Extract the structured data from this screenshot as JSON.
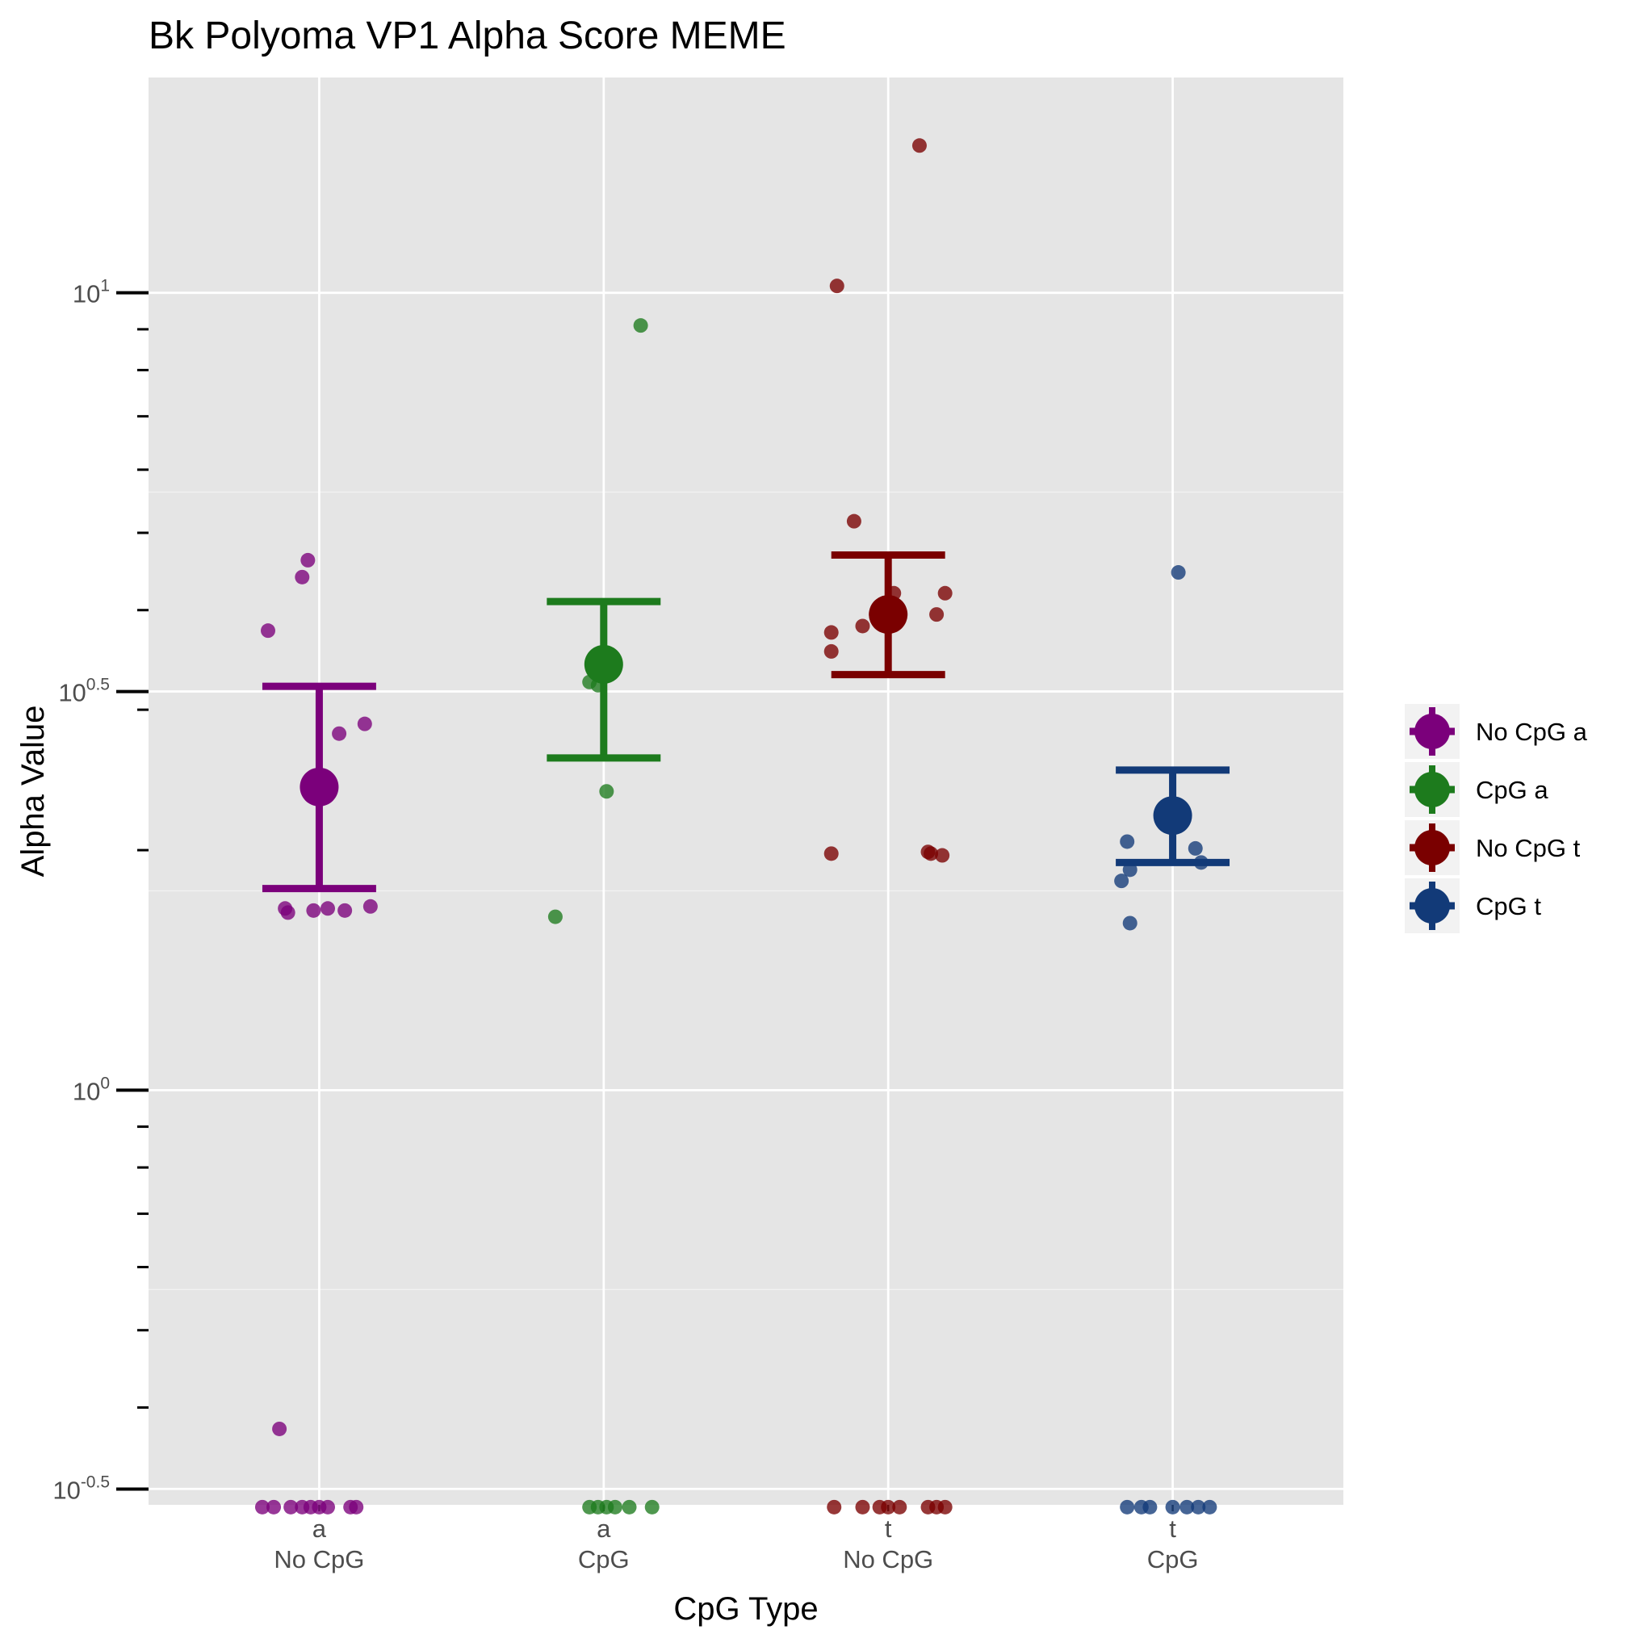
{
  "chart_data": {
    "type": "scatter",
    "title": "Bk Polyoma VP1 Alpha Score MEME",
    "xlabel": "CpG Type",
    "ylabel": "Alpha Value",
    "y_scale": "log10",
    "y_ticks": [
      {
        "value": 0.316,
        "base": "10",
        "exp": "-0.5"
      },
      {
        "value": 1,
        "base": "10",
        "exp": "0"
      },
      {
        "value": 3.162,
        "base": "10",
        "exp": "0.5"
      },
      {
        "value": 10,
        "base": "10",
        "exp": "1"
      }
    ],
    "ylim_log10": [
      -0.52,
      1.27
    ],
    "grid": true,
    "legend_position": "right",
    "categories": [
      {
        "line1": "a",
        "line2": "No CpG"
      },
      {
        "line1": "a",
        "line2": "CpG"
      },
      {
        "line1": "t",
        "line2": "No CpG"
      },
      {
        "line1": "t",
        "line2": "CpG"
      }
    ],
    "series": [
      {
        "name": "No CpG a",
        "color": "#7b007b",
        "category": 0,
        "mean": 2.4,
        "error_low": 1.79,
        "error_high": 3.21,
        "points": [
          {
            "jitter": -0.18,
            "y": 3.77
          },
          {
            "jitter": -0.06,
            "y": 4.4
          },
          {
            "jitter": -0.04,
            "y": 4.62
          },
          {
            "jitter": 0.07,
            "y": 2.8
          },
          {
            "jitter": 0.16,
            "y": 2.88
          },
          {
            "jitter": -0.14,
            "y": 0.376
          },
          {
            "jitter": -0.12,
            "y": 1.69
          },
          {
            "jitter": -0.11,
            "y": 1.67
          },
          {
            "jitter": -0.02,
            "y": 1.68
          },
          {
            "jitter": 0.03,
            "y": 1.69
          },
          {
            "jitter": 0.09,
            "y": 1.68
          },
          {
            "jitter": 0.18,
            "y": 1.7
          },
          {
            "jitter": -0.2,
            "y": 0.3
          },
          {
            "jitter": -0.16,
            "y": 0.3
          },
          {
            "jitter": -0.1,
            "y": 0.3
          },
          {
            "jitter": -0.06,
            "y": 0.3
          },
          {
            "jitter": -0.03,
            "y": 0.3
          },
          {
            "jitter": 0.0,
            "y": 0.3
          },
          {
            "jitter": 0.03,
            "y": 0.3
          },
          {
            "jitter": 0.11,
            "y": 0.3
          },
          {
            "jitter": 0.13,
            "y": 0.3
          }
        ]
      },
      {
        "name": "CpG a",
        "color": "#1d7b1d",
        "category": 1,
        "mean": 3.42,
        "error_low": 2.61,
        "error_high": 4.1,
        "points": [
          {
            "jitter": 0.13,
            "y": 9.1
          },
          {
            "jitter": -0.05,
            "y": 3.25
          },
          {
            "jitter": -0.02,
            "y": 3.22
          },
          {
            "jitter": 0.01,
            "y": 2.37
          },
          {
            "jitter": -0.17,
            "y": 1.65
          },
          {
            "jitter": -0.05,
            "y": 0.3
          },
          {
            "jitter": -0.02,
            "y": 0.3
          },
          {
            "jitter": 0.01,
            "y": 0.3
          },
          {
            "jitter": 0.04,
            "y": 0.3
          },
          {
            "jitter": 0.09,
            "y": 0.3
          },
          {
            "jitter": 0.17,
            "y": 0.3
          }
        ]
      },
      {
        "name": "No CpG t",
        "color": "#7a0000",
        "category": 2,
        "mean": 3.95,
        "error_low": 3.32,
        "error_high": 4.69,
        "points": [
          {
            "jitter": 0.11,
            "y": 15.3
          },
          {
            "jitter": -0.18,
            "y": 10.2
          },
          {
            "jitter": -0.12,
            "y": 5.17
          },
          {
            "jitter": -0.09,
            "y": 3.82
          },
          {
            "jitter": -0.2,
            "y": 3.75
          },
          {
            "jitter": 0.02,
            "y": 4.2
          },
          {
            "jitter": 0.17,
            "y": 3.95
          },
          {
            "jitter": 0.2,
            "y": 4.2
          },
          {
            "jitter": -0.2,
            "y": 3.55
          },
          {
            "jitter": -0.2,
            "y": 1.98
          },
          {
            "jitter": 0.14,
            "y": 1.99
          },
          {
            "jitter": 0.19,
            "y": 1.97
          },
          {
            "jitter": 0.15,
            "y": 1.98
          },
          {
            "jitter": -0.19,
            "y": 0.3
          },
          {
            "jitter": -0.09,
            "y": 0.3
          },
          {
            "jitter": -0.03,
            "y": 0.3
          },
          {
            "jitter": 0.0,
            "y": 0.3
          },
          {
            "jitter": 0.04,
            "y": 0.3
          },
          {
            "jitter": 0.14,
            "y": 0.3
          },
          {
            "jitter": 0.17,
            "y": 0.3
          },
          {
            "jitter": 0.2,
            "y": 0.3
          }
        ]
      },
      {
        "name": "CpG t",
        "color": "#123a78",
        "category": 3,
        "mean": 2.21,
        "error_low": 1.93,
        "error_high": 2.52,
        "points": [
          {
            "jitter": 0.02,
            "y": 4.46
          },
          {
            "jitter": -0.16,
            "y": 2.05
          },
          {
            "jitter": -0.15,
            "y": 1.89
          },
          {
            "jitter": 0.08,
            "y": 2.01
          },
          {
            "jitter": 0.1,
            "y": 1.93
          },
          {
            "jitter": -0.18,
            "y": 1.83
          },
          {
            "jitter": -0.15,
            "y": 1.62
          },
          {
            "jitter": -0.16,
            "y": 0.3
          },
          {
            "jitter": -0.11,
            "y": 0.3
          },
          {
            "jitter": -0.08,
            "y": 0.3
          },
          {
            "jitter": 0.0,
            "y": 0.3
          },
          {
            "jitter": 0.05,
            "y": 0.3
          },
          {
            "jitter": 0.09,
            "y": 0.3
          },
          {
            "jitter": 0.13,
            "y": 0.3
          }
        ]
      }
    ]
  }
}
